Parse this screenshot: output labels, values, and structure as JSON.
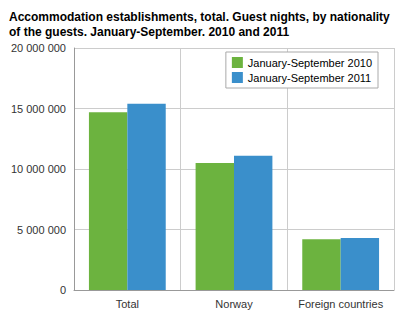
{
  "chart_data": {
    "type": "bar",
    "title": "Accommodation establishments, total. Guest nights, by nationality of the guests. January-September. 2010 and 2011",
    "categories": [
      "Total",
      "Norway",
      "Foreign countries"
    ],
    "series": [
      {
        "name": "January-September 2010",
        "color": "#6cb33f",
        "values": [
          14700000,
          10500000,
          4200000
        ]
      },
      {
        "name": "January-September 2011",
        "color": "#3a8fcb",
        "values": [
          15400000,
          11100000,
          4300000
        ]
      }
    ],
    "ylim": [
      0,
      20000000
    ],
    "yticks": [
      0,
      {
        "value": 5000000,
        "label": "5 000 000"
      },
      {
        "value": 10000000,
        "label": "10 000 000"
      },
      {
        "value": 15000000,
        "label": "15 000 000"
      },
      {
        "value": 20000000,
        "label": "20 000 000"
      }
    ],
    "grid": true,
    "legend": "upper right"
  }
}
